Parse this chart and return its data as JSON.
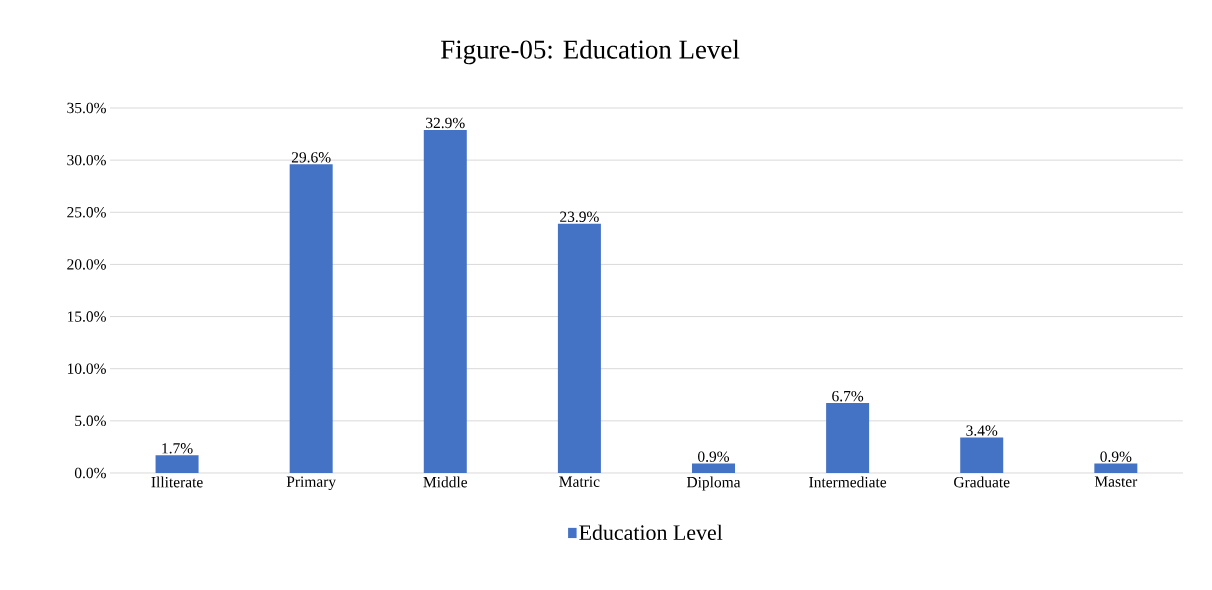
{
  "chart_data": {
    "type": "bar",
    "title": "Figure-05: Education Level",
    "categories": [
      "Illiterate",
      "Primary",
      "Middle",
      "Matric",
      "Diploma",
      "Intermediate",
      "Graduate",
      "Master"
    ],
    "series": [
      {
        "name": "Education Level",
        "color": "#4472c4",
        "values": [
          1.7,
          29.6,
          32.9,
          23.9,
          0.9,
          6.7,
          3.4,
          0.9
        ],
        "value_labels": [
          "1.7%",
          "29.6%",
          "32.9%",
          "23.9%",
          "0.9%",
          "6.7%",
          "3.4%",
          "0.9%"
        ]
      }
    ],
    "ylim": [
      0,
      35
    ],
    "yticks": [
      {
        "value": 0,
        "label": "0.0%"
      },
      {
        "value": 5,
        "label": "5.0%"
      },
      {
        "value": 10,
        "label": "10.0%"
      },
      {
        "value": 15,
        "label": "15.0%"
      },
      {
        "value": 20,
        "label": "20.0%"
      },
      {
        "value": 25,
        "label": "25.0%"
      },
      {
        "value": 30,
        "label": "30.0%"
      },
      {
        "value": 35,
        "label": "35.0%"
      }
    ],
    "grid": "y",
    "legend": "bottom"
  }
}
